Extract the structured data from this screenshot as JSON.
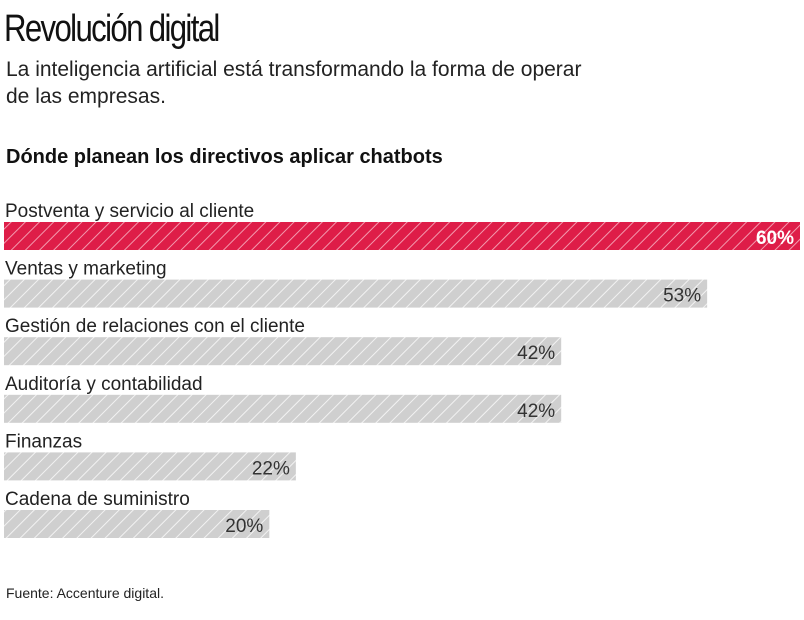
{
  "title": "Revolución digital",
  "subtitle": "La inteligencia artificial está transformando la forma de operar de las empresas.",
  "source": "Fuente: Accenture digital.",
  "colors": {
    "highlight": "#de1d48",
    "bar": "#cfcfcf",
    "hatch": "#ffffff"
  },
  "chart_data": {
    "type": "bar",
    "orientation": "horizontal",
    "title": "Dónde planean los directivos  aplicar chatbots",
    "categories": [
      "Postventa y servicio al cliente",
      "Ventas y marketing",
      "Gestión de relaciones con el cliente",
      "Auditoría y contabilidad",
      "Finanzas",
      "Cadena de suministro"
    ],
    "values": [
      60,
      53,
      42,
      42,
      22,
      20
    ],
    "labels": [
      "60%",
      "53%",
      "42%",
      "42%",
      "22%",
      "20%"
    ],
    "highlighted": [
      true,
      false,
      false,
      false,
      false,
      false
    ],
    "unit": "%",
    "grid": false
  }
}
